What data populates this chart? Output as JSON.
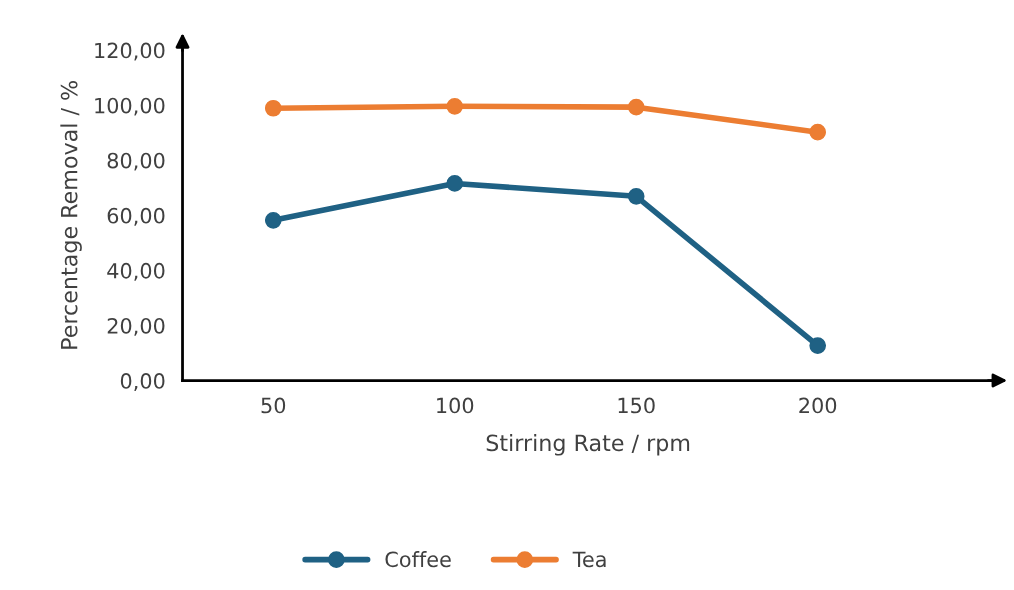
{
  "chart_data": {
    "type": "line",
    "xlabel": "Stirring Rate / rpm",
    "ylabel": "Percentage Removal / %",
    "categories": [
      "50",
      "100",
      "150",
      "200"
    ],
    "series": [
      {
        "name": "Coffee",
        "color": "#1f6184",
        "values": [
          58.2,
          71.6,
          66.9,
          12.7
        ]
      },
      {
        "name": "Tea",
        "color": "#ec7d32",
        "values": [
          98.9,
          99.6,
          99.3,
          90.2
        ]
      }
    ],
    "ylim": [
      0,
      120
    ],
    "yticks": [
      {
        "value": 0,
        "label": "0,00"
      },
      {
        "value": 20,
        "label": "20,00"
      },
      {
        "value": 40,
        "label": "40,00"
      },
      {
        "value": 60,
        "label": "60,00"
      },
      {
        "value": 80,
        "label": "80,00"
      },
      {
        "value": 100,
        "label": "100,00"
      },
      {
        "value": 120,
        "label": "120,00"
      }
    ],
    "grid": false,
    "legend": "bottom",
    "marker": "circle",
    "line_style": "solid"
  }
}
